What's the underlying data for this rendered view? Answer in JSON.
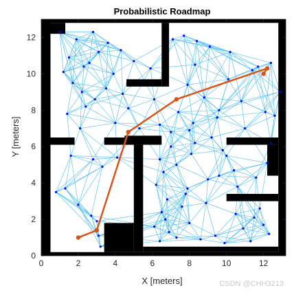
{
  "chart_data": {
    "type": "scatter",
    "title": "Probabilistic Roadmap",
    "xlabel": "X [meters]",
    "ylabel": "Y [meters]",
    "xlim": [
      0,
      13.2
    ],
    "ylim": [
      0,
      13
    ],
    "xticks": [
      0,
      2,
      4,
      6,
      8,
      10,
      12
    ],
    "yticks": [
      0,
      2,
      4,
      6,
      8,
      10,
      12
    ],
    "grid": false,
    "colors": {
      "occupied": "#000000",
      "free": "#ffffff",
      "edges": "#4dbeee",
      "nodes": "#0000ff",
      "path": "#d95319"
    },
    "obstacles": [
      {
        "x": [
          0,
          13.2
        ],
        "y": [
          0,
          0.2
        ]
      },
      {
        "x": [
          0,
          13.2
        ],
        "y": [
          12.8,
          13
        ]
      },
      {
        "x": [
          0,
          0.5
        ],
        "y": [
          0,
          13
        ]
      },
      {
        "x": [
          12.8,
          13.2
        ],
        "y": [
          0,
          13
        ]
      },
      {
        "x": [
          0.5,
          1.3
        ],
        "y": [
          12.2,
          12.8
        ]
      },
      {
        "x": [
          0.5,
          1.8
        ],
        "y": [
          6.1,
          6.5
        ]
      },
      {
        "x": [
          3.4,
          4.5
        ],
        "y": [
          6.1,
          6.5
        ]
      },
      {
        "x": [
          4.5,
          6.5
        ],
        "y": [
          6.1,
          6.6
        ]
      },
      {
        "x": [
          5.0,
          5.5
        ],
        "y": [
          0.2,
          6.1
        ]
      },
      {
        "x": [
          3.4,
          5.0
        ],
        "y": [
          0.2,
          1.8
        ]
      },
      {
        "x": [
          6.5,
          6.9
        ],
        "y": [
          9.3,
          12.8
        ]
      },
      {
        "x": [
          4.6,
          6.5
        ],
        "y": [
          9.3,
          9.7
        ]
      },
      {
        "x": [
          5.5,
          12.8
        ],
        "y": [
          0.2,
          0.5
        ]
      },
      {
        "x": [
          10.0,
          12.8
        ],
        "y": [
          6.1,
          6.5
        ]
      },
      {
        "x": [
          12.2,
          12.8
        ],
        "y": [
          4.4,
          6.1
        ]
      },
      {
        "x": [
          10.0,
          12.8
        ],
        "y": [
          3.0,
          3.4
        ]
      },
      {
        "x": [
          12.8,
          12.8
        ],
        "y": [
          0,
          0
        ]
      }
    ],
    "nodes": {
      "x": [
        1.0,
        1.9,
        1.5,
        2.3,
        2.8,
        1.2,
        3.1,
        3.6,
        2.6,
        1.7,
        2.2,
        2.9,
        3.9,
        4.3,
        3.5,
        1.4,
        2.4,
        4.4,
        4.0,
        5.9,
        5.0,
        4.7,
        2.1,
        1.6,
        2.8,
        3.3,
        4.1,
        0.8,
        1.3,
        2.0,
        2.7,
        3.1,
        3.2,
        3.0,
        7.1,
        8.4,
        7.7,
        9.1,
        10.2,
        11.7,
        12.4,
        8.3,
        7.9,
        10.1,
        11.4,
        12.9,
        8.8,
        9.6,
        10.8,
        12.1,
        7.4,
        8.2,
        9.5,
        11.0,
        12.6,
        6.1,
        6.4,
        7.0,
        8.0,
        9.2,
        6.4,
        6.6,
        7.3,
        8.1,
        9.8,
        6.2,
        6.8,
        7.9,
        9.0,
        10.4,
        11.6,
        12.2,
        6.5,
        7.6,
        8.9,
        10.5,
        11.8,
        6.1,
        6.9,
        8.0,
        9.4,
        10.9,
        12.0,
        6.4,
        7.3,
        8.6,
        9.9,
        11.3,
        12.3,
        6.7,
        7.8,
        9.6,
        10.6,
        11.5,
        7.0,
        8.3,
        10.0,
        12.4,
        5.3
      ],
      "y": [
        12.3,
        11.9,
        10.9,
        10.4,
        12.3,
        10.1,
        11.2,
        11.7,
        10.6,
        9.5,
        9.0,
        8.6,
        10.0,
        11.3,
        9.2,
        7.8,
        8.2,
        8.9,
        7.3,
        10.3,
        10.7,
        8.1,
        7.0,
        5.5,
        5.3,
        4.9,
        5.4,
        3.5,
        3.7,
        2.8,
        2.2,
        1.1,
        0.5,
        1.9,
        11.9,
        11.8,
        12.1,
        11.5,
        11.2,
        10.4,
        10.6,
        10.5,
        9.4,
        9.7,
        10.2,
        9.0,
        8.7,
        8.0,
        8.5,
        7.9,
        7.9,
        7.3,
        7.6,
        7.0,
        7.7,
        8.6,
        7.2,
        6.8,
        6.9,
        6.5,
        5.3,
        4.6,
        5.0,
        5.6,
        5.8,
        3.9,
        3.1,
        3.7,
        4.2,
        4.7,
        4.3,
        5.1,
        2.4,
        2.7,
        2.9,
        2.3,
        2.6,
        1.6,
        1.3,
        1.8,
        1.1,
        1.5,
        1.7,
        0.8,
        1.0,
        0.9,
        0.7,
        0.8,
        1.2,
        2.0,
        3.4,
        4.4,
        3.8,
        2.1,
        6.0,
        6.2,
        5.5,
        6.2,
        7.0
      ]
    },
    "path": {
      "x": [
        2.0,
        3.0,
        4.7,
        7.3,
        12.2,
        12.0
      ],
      "y": [
        1.0,
        1.4,
        6.8,
        8.6,
        10.3,
        10.0
      ]
    },
    "watermark": "CSDN @CHH3213"
  }
}
